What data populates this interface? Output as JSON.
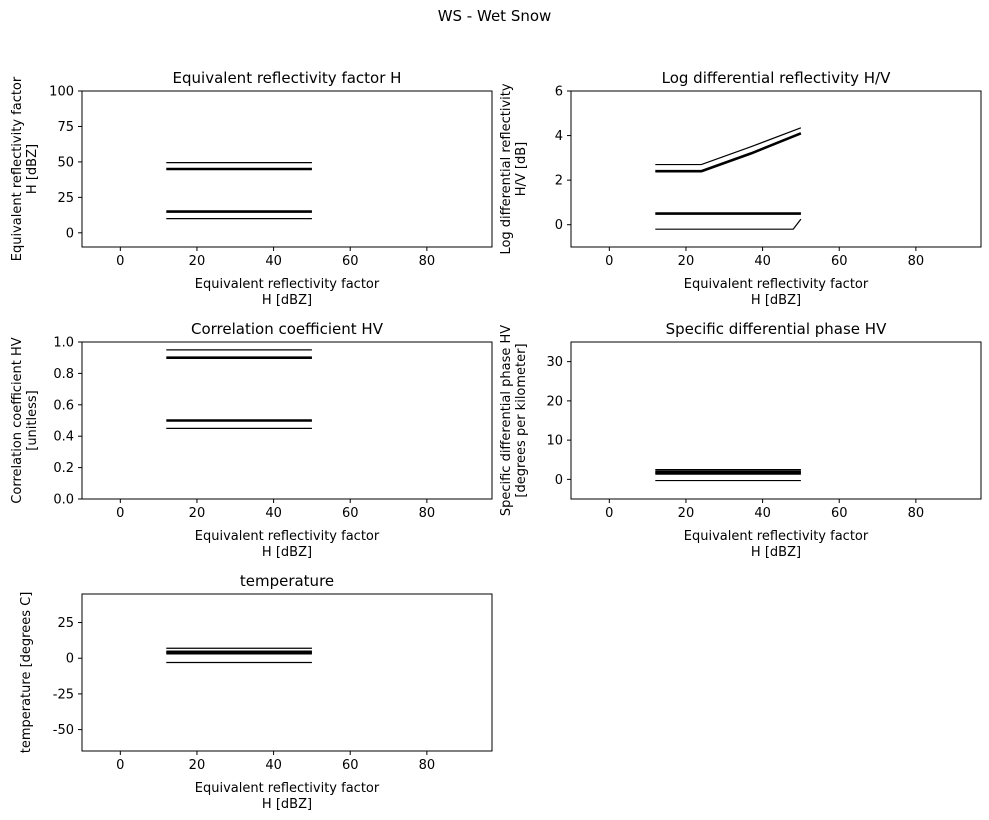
{
  "figure": {
    "suptitle": "WS - Wet Snow"
  },
  "chart_data": [
    {
      "type": "line",
      "title": "Equivalent reflectivity factor H",
      "xlabel": [
        "Equivalent reflectivity factor",
        "H [dBZ]"
      ],
      "ylabel": [
        "Equivalent reflectivity factor",
        "H [dBZ]"
      ],
      "xlim": [
        -10,
        97
      ],
      "ylim": [
        -10,
        100
      ],
      "xticks": [
        0,
        20,
        40,
        60,
        80
      ],
      "yticks": [
        0,
        25,
        50,
        75,
        100
      ],
      "grid": false,
      "series": [
        {
          "x": [
            12,
            50
          ],
          "y": [
            49.5,
            49.5
          ],
          "style": "thin"
        },
        {
          "x": [
            12,
            50
          ],
          "y": [
            45,
            45
          ],
          "style": "thick"
        },
        {
          "x": [
            12,
            50
          ],
          "y": [
            15,
            15
          ],
          "style": "thick"
        },
        {
          "x": [
            12,
            50
          ],
          "y": [
            10,
            10
          ],
          "style": "thin"
        }
      ]
    },
    {
      "type": "line",
      "title": "Log differential reflectivity H/V",
      "xlabel": [
        "Equivalent reflectivity factor",
        "H [dBZ]"
      ],
      "ylabel": [
        "Log differential reflectivity",
        "H/V [dB]"
      ],
      "xlim": [
        -10,
        97
      ],
      "ylim": [
        -1,
        6
      ],
      "xticks": [
        0,
        20,
        40,
        60,
        80
      ],
      "yticks": [
        0,
        2,
        4,
        6
      ],
      "grid": false,
      "series": [
        {
          "x": [
            12,
            24,
            37,
            50
          ],
          "y": [
            2.7,
            2.7,
            3.5,
            4.35
          ],
          "style": "thin"
        },
        {
          "x": [
            12,
            24,
            37,
            50
          ],
          "y": [
            2.4,
            2.4,
            3.2,
            4.1
          ],
          "style": "thick"
        },
        {
          "x": [
            12,
            50
          ],
          "y": [
            0.5,
            0.5
          ],
          "style": "thick"
        },
        {
          "x": [
            12,
            48,
            50
          ],
          "y": [
            -0.2,
            -0.2,
            0.25
          ],
          "style": "thin"
        }
      ]
    },
    {
      "type": "line",
      "title": "Correlation coefficient HV",
      "xlabel": [
        "Equivalent reflectivity factor",
        "H [dBZ]"
      ],
      "ylabel": [
        "Correlation coefficient HV",
        "[unitless]"
      ],
      "xlim": [
        -10,
        97
      ],
      "ylim": [
        0,
        1
      ],
      "xticks": [
        0,
        20,
        40,
        60,
        80
      ],
      "yticks": [
        "0.0",
        "0.2",
        "0.4",
        "0.6",
        "0.8",
        "1.0"
      ],
      "grid": false,
      "series": [
        {
          "x": [
            12,
            50
          ],
          "y": [
            0.95,
            0.95
          ],
          "style": "thin"
        },
        {
          "x": [
            12,
            50
          ],
          "y": [
            0.9,
            0.9
          ],
          "style": "thick"
        },
        {
          "x": [
            12,
            50
          ],
          "y": [
            0.5,
            0.5
          ],
          "style": "thick"
        },
        {
          "x": [
            12,
            50
          ],
          "y": [
            0.45,
            0.45
          ],
          "style": "thin"
        }
      ]
    },
    {
      "type": "line",
      "title": "Specific differential phase HV",
      "xlabel": [
        "Equivalent reflectivity factor",
        "H [dBZ]"
      ],
      "ylabel": [
        "Specific differential phase HV",
        "[degrees per kilometer]"
      ],
      "xlim": [
        -10,
        97
      ],
      "ylim": [
        -5,
        35
      ],
      "xticks": [
        0,
        20,
        40,
        60,
        80
      ],
      "yticks": [
        0,
        10,
        20,
        30
      ],
      "grid": false,
      "series": [
        {
          "x": [
            12,
            50
          ],
          "y": [
            2.5,
            2.5
          ],
          "style": "thin"
        },
        {
          "x": [
            12,
            50
          ],
          "y": [
            2,
            2
          ],
          "style": "thick"
        },
        {
          "x": [
            12,
            50
          ],
          "y": [
            1.5,
            1.5
          ],
          "style": "thick"
        },
        {
          "x": [
            12,
            50
          ],
          "y": [
            -0.3,
            -0.3
          ],
          "style": "thin"
        }
      ]
    },
    {
      "type": "line",
      "title": "temperature",
      "xlabel": [
        "Equivalent reflectivity factor",
        "H [dBZ]"
      ],
      "ylabel": [
        "temperature [degrees C]"
      ],
      "xlim": [
        -10,
        97
      ],
      "ylim": [
        -65,
        45
      ],
      "xticks": [
        0,
        20,
        40,
        60,
        80
      ],
      "yticks": [
        -50,
        -25,
        0,
        25
      ],
      "grid": false,
      "series": [
        {
          "x": [
            12,
            50
          ],
          "y": [
            7,
            7
          ],
          "style": "thin"
        },
        {
          "x": [
            12,
            50
          ],
          "y": [
            4.5,
            4.5
          ],
          "style": "thick"
        },
        {
          "x": [
            12,
            50
          ],
          "y": [
            3.5,
            3.5
          ],
          "style": "thick"
        },
        {
          "x": [
            12,
            50
          ],
          "y": [
            -3,
            -3
          ],
          "style": "thin"
        }
      ]
    }
  ]
}
